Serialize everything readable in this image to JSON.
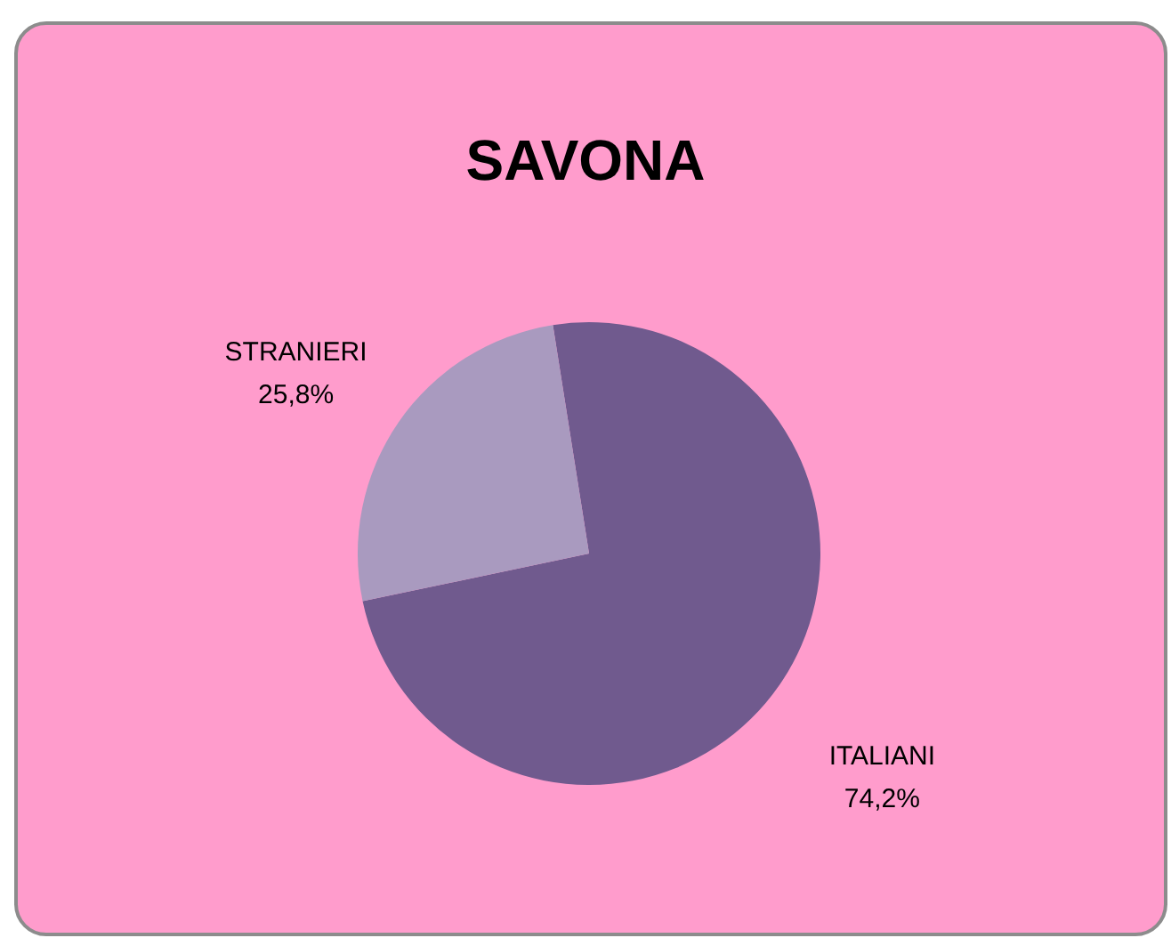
{
  "chart_data": {
    "type": "pie",
    "title": "SAVONA",
    "categories": [
      "ITALIANI",
      "STRANIERI"
    ],
    "values": [
      74.2,
      25.8
    ],
    "colors": [
      "#705a8e",
      "#a99abf"
    ],
    "value_labels": [
      "74,2%",
      "25,8%"
    ]
  }
}
